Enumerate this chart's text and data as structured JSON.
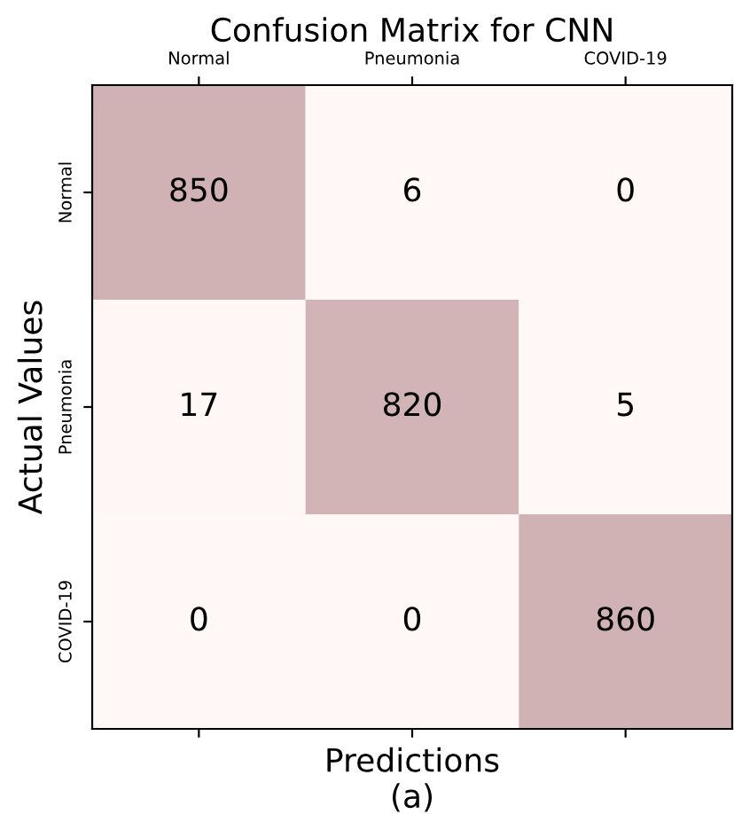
{
  "chart_data": {
    "type": "heatmap",
    "title": "Confusion Matrix for CNN",
    "xlabel": "Predictions\n(a)",
    "ylabel": "Actual Values",
    "categories": [
      "Normal",
      "Pneumonia",
      "COVID-19"
    ],
    "y_categories": [
      "Normal",
      "Pneumonia",
      "COVID-19"
    ],
    "cells": [
      [
        850,
        6,
        0
      ],
      [
        17,
        820,
        5
      ],
      [
        0,
        0,
        860
      ]
    ],
    "data_labels": true
  }
}
